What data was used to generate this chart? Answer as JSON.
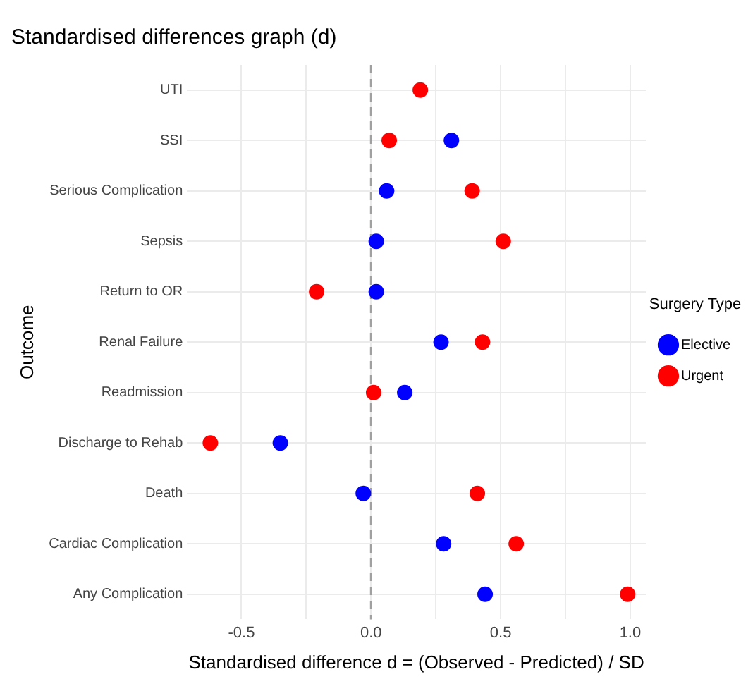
{
  "chart_data": {
    "type": "scatter",
    "title": "Standardised differences graph (d)",
    "xlabel": "Standardised difference d = (Observed - Predicted) / SD",
    "ylabel": "Outcome",
    "legend_title": "Surgery Type",
    "orientation": "horizontal",
    "categories": [
      "UTI",
      "SSI",
      "Serious Complication",
      "Sepsis",
      "Return to OR",
      "Renal Failure",
      "Readmission",
      "Discharge to Rehab",
      "Death",
      "Cardiac Complication",
      "Any Complication"
    ],
    "series": [
      {
        "name": "Elective",
        "color": "#0000ff",
        "values": [
          null,
          0.31,
          0.06,
          0.02,
          0.02,
          0.27,
          0.13,
          -0.35,
          -0.03,
          0.28,
          0.44
        ]
      },
      {
        "name": "Urgent",
        "color": "#ff0000",
        "values": [
          0.19,
          0.07,
          0.39,
          0.51,
          -0.21,
          0.43,
          0.01,
          -0.62,
          0.41,
          0.56,
          0.99
        ]
      }
    ],
    "xlim": [
      -0.71,
      1.06
    ],
    "xticks": [
      {
        "value": -0.5,
        "label": "-0.5"
      },
      {
        "value": -0.25,
        "label": null
      },
      {
        "value": 0,
        "label": "0.0"
      },
      {
        "value": 0.25,
        "label": null
      },
      {
        "value": 0.5,
        "label": "0.5"
      },
      {
        "value": 0.75,
        "label": null
      },
      {
        "value": 1,
        "label": "1.0"
      }
    ],
    "ref_lines": [
      {
        "axis": "x",
        "value": 0,
        "color": "#a0a0a0",
        "line_style": "dashed"
      }
    ],
    "grid": true,
    "legend": "right",
    "marker": "circle"
  }
}
